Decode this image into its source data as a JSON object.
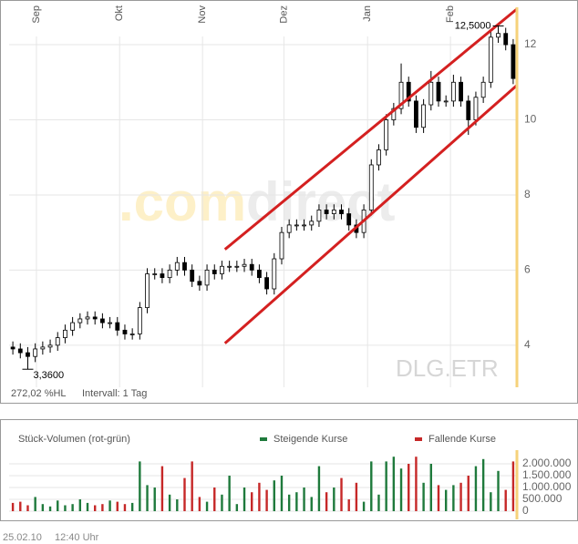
{
  "chart_data": [
    {
      "type": "candlestick",
      "categories": [
        null,
        null,
        null,
        null,
        null,
        null,
        null,
        null,
        null,
        null,
        null,
        null,
        null,
        null,
        null,
        null,
        null,
        null,
        null,
        null,
        null,
        null,
        null,
        null,
        null,
        null,
        null,
        null,
        null,
        null,
        null,
        null,
        null,
        null,
        null,
        null,
        null,
        null,
        null,
        null,
        null,
        null,
        null,
        null,
        null,
        null,
        null,
        null,
        null,
        null,
        null,
        null,
        null,
        null,
        null,
        null,
        null,
        null,
        null,
        null,
        null,
        null,
        null,
        null,
        null,
        null,
        null,
        null
      ],
      "open": [
        3.95,
        3.9,
        3.8,
        3.7,
        3.9,
        3.95,
        4.0,
        4.2,
        4.4,
        4.6,
        4.7,
        4.75,
        4.7,
        4.6,
        4.6,
        4.4,
        4.3,
        4.3,
        5.0,
        5.9,
        5.9,
        5.8,
        6.0,
        6.2,
        6.0,
        5.7,
        5.6,
        6.0,
        5.9,
        6.1,
        6.1,
        6.1,
        6.15,
        6.0,
        5.8,
        5.5,
        6.3,
        7.0,
        7.2,
        7.2,
        7.2,
        7.3,
        7.6,
        7.5,
        7.6,
        7.5,
        7.2,
        7.0,
        7.6,
        8.8,
        9.2,
        10.0,
        10.3,
        11.0,
        10.5,
        9.8,
        10.4,
        11.0,
        10.5,
        10.5,
        11.0,
        10.5,
        10.0,
        10.6,
        11.0,
        12.2,
        12.3,
        12.0
      ],
      "high": [
        4.1,
        4.05,
        3.95,
        4.05,
        4.1,
        4.15,
        4.35,
        4.55,
        4.75,
        4.85,
        4.9,
        4.9,
        4.85,
        4.75,
        4.75,
        4.55,
        4.45,
        5.15,
        6.05,
        6.05,
        6.05,
        6.15,
        6.35,
        6.35,
        6.15,
        5.85,
        6.15,
        6.15,
        6.25,
        6.25,
        6.25,
        6.3,
        6.3,
        6.15,
        5.95,
        6.45,
        7.15,
        7.35,
        7.35,
        7.35,
        7.45,
        7.75,
        7.75,
        7.75,
        7.75,
        7.65,
        7.35,
        7.75,
        8.95,
        9.35,
        10.15,
        10.45,
        11.5,
        11.15,
        10.65,
        10.55,
        11.3,
        11.15,
        10.65,
        11.2,
        11.15,
        10.65,
        10.75,
        11.15,
        12.35,
        12.5,
        12.45,
        12.15
      ],
      "low": [
        3.75,
        3.65,
        3.36,
        3.55,
        3.75,
        3.8,
        3.85,
        4.05,
        4.25,
        4.45,
        4.55,
        4.55,
        4.45,
        4.45,
        4.25,
        4.15,
        4.15,
        4.15,
        4.85,
        5.75,
        5.65,
        5.65,
        5.85,
        5.85,
        5.55,
        5.45,
        5.45,
        5.75,
        5.75,
        5.95,
        5.95,
        5.95,
        5.85,
        5.65,
        5.35,
        5.35,
        6.15,
        6.85,
        7.05,
        7.05,
        7.05,
        7.15,
        7.35,
        7.35,
        7.35,
        7.05,
        6.85,
        6.85,
        7.45,
        8.65,
        9.05,
        9.85,
        10.15,
        10.35,
        9.65,
        9.65,
        10.25,
        10.35,
        10.35,
        10.35,
        10.35,
        9.6,
        9.85,
        10.45,
        10.85,
        12.05,
        11.85,
        10.95
      ],
      "close": [
        3.9,
        3.8,
        3.7,
        3.9,
        3.95,
        4.0,
        4.2,
        4.4,
        4.6,
        4.7,
        4.75,
        4.7,
        4.6,
        4.6,
        4.4,
        4.3,
        4.3,
        5.0,
        5.9,
        5.9,
        5.8,
        6.0,
        6.2,
        6.0,
        5.7,
        5.6,
        6.0,
        5.9,
        6.1,
        6.1,
        6.1,
        6.15,
        6.0,
        5.8,
        5.5,
        6.3,
        7.0,
        7.2,
        7.2,
        7.2,
        7.3,
        7.6,
        7.5,
        7.6,
        7.5,
        7.2,
        7.0,
        7.6,
        8.8,
        9.2,
        10.0,
        10.3,
        11.0,
        10.5,
        9.8,
        10.4,
        11.0,
        10.5,
        10.5,
        11.0,
        10.5,
        10.0,
        10.6,
        11.0,
        12.2,
        12.3,
        12.0,
        11.1
      ],
      "color": "#000000",
      "ylim": [
        2.88,
        13.19
      ],
      "yticks": [
        4,
        6,
        8,
        10,
        12
      ],
      "grid": true,
      "xticks": [
        {
          "value": 3.16,
          "label": "Sep"
        },
        {
          "value": 14.3,
          "label": "Okt"
        },
        {
          "value": 25.4,
          "label": "Nov"
        },
        {
          "value": 36.3,
          "label": "Dez"
        },
        {
          "value": 47.5,
          "label": "Jan"
        },
        {
          "value": 58.6,
          "label": "Feb"
        }
      ],
      "annotations": [
        {
          "index": 2,
          "value": 3.36,
          "label": "3,3600"
        },
        {
          "index": 65,
          "value": 12.5,
          "label": "12,5000"
        }
      ],
      "trend_lines": [
        {
          "x": [
            28.4,
            67.5
          ],
          "y": [
            6.55,
            12.95
          ],
          "color": "#d42020"
        },
        {
          "x": [
            28.4,
            67.5
          ],
          "y": [
            4.05,
            10.92
          ],
          "color": "#d42020"
        }
      ],
      "hl_info": "272,02 %HL",
      "interval": "Intervall: 1 Tag",
      "symbol": "DLG.ETR",
      "watermark": [
        ".com",
        "direct"
      ]
    },
    {
      "type": "volume",
      "title": "Stück-Volumen (rot-grün)",
      "values": [
        350000,
        400000,
        250000,
        600000,
        300000,
        200000,
        450000,
        250000,
        300000,
        500000,
        350000,
        250000,
        300000,
        450000,
        400000,
        300000,
        350000,
        2100000,
        1100000,
        1000000,
        1900000,
        700000,
        500000,
        1400000,
        2100000,
        600000,
        400000,
        1000000,
        700000,
        1500000,
        300000,
        1000000,
        800000,
        1200000,
        900000,
        1300000,
        1500000,
        700000,
        800000,
        1000000,
        600000,
        1900000,
        800000,
        1000000,
        1400000,
        500000,
        1200000,
        400000,
        2100000,
        700000,
        2100000,
        2300000,
        1800000,
        2000000,
        2300000,
        1200000,
        2000000,
        1100000,
        900000,
        1100000,
        1200000,
        1500000,
        1900000,
        2200000,
        800000,
        1700000,
        900000,
        2100000
      ],
      "ylim": [
        0,
        2500000
      ],
      "yticks": [
        {
          "value": 2000000,
          "label": "2.000.000"
        },
        {
          "value": 1500000,
          "label": "1.500.000"
        },
        {
          "value": 1000000,
          "label": "1.000.000"
        },
        {
          "value": 500000,
          "label": "500.000"
        },
        0
      ],
      "legend": [
        {
          "name": "Steigende Kurse",
          "color": "#1f7a3c"
        },
        {
          "name": "Fallende Kurse",
          "color": "#c62828"
        }
      ]
    }
  ],
  "footer": {
    "date": "25.02.10",
    "time": "12:40 Uhr"
  }
}
